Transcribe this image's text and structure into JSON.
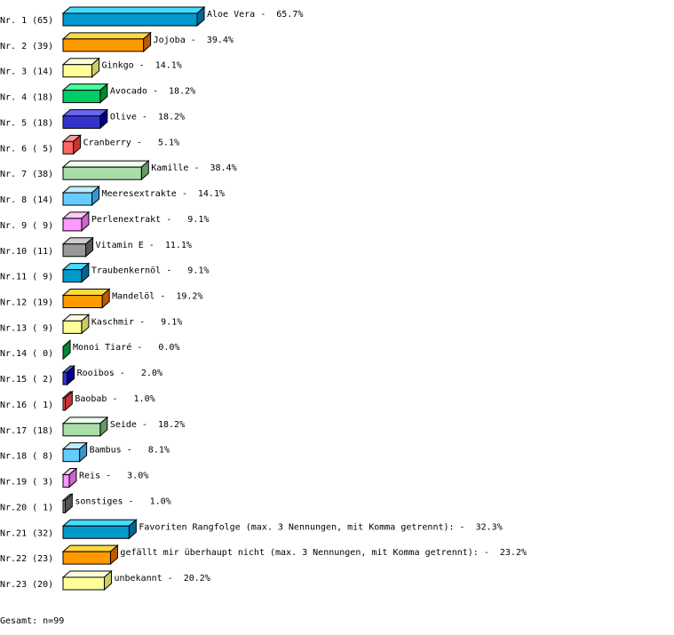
{
  "chart_data": {
    "type": "bar",
    "orientation": "horizontal",
    "style": "3d",
    "total_label": "Gesamt: n=99",
    "rows": [
      {
        "rank": "Nr. 1",
        "count": 65,
        "label": "Aloe Vera",
        "percent": "65.7%"
      },
      {
        "rank": "Nr. 2",
        "count": 39,
        "label": "Jojoba",
        "percent": "39.4%"
      },
      {
        "rank": "Nr. 3",
        "count": 14,
        "label": "Ginkgo",
        "percent": "14.1%"
      },
      {
        "rank": "Nr. 4",
        "count": 18,
        "label": "Avocado",
        "percent": "18.2%"
      },
      {
        "rank": "Nr. 5",
        "count": 18,
        "label": "Olive",
        "percent": "18.2%"
      },
      {
        "rank": "Nr. 6",
        "count": 5,
        "label": "Cranberry",
        "percent": "5.1%"
      },
      {
        "rank": "Nr. 7",
        "count": 38,
        "label": "Kamille",
        "percent": "38.4%"
      },
      {
        "rank": "Nr. 8",
        "count": 14,
        "label": "Meeresextrakte",
        "percent": "14.1%"
      },
      {
        "rank": "Nr. 9",
        "count": 9,
        "label": "Perlenextrakt",
        "percent": "9.1%"
      },
      {
        "rank": "Nr.10",
        "count": 11,
        "label": "Vitamin E",
        "percent": "11.1%"
      },
      {
        "rank": "Nr.11",
        "count": 9,
        "label": "Traubenkernöl",
        "percent": "9.1%"
      },
      {
        "rank": "Nr.12",
        "count": 19,
        "label": "Mandelöl",
        "percent": "19.2%"
      },
      {
        "rank": "Nr.13",
        "count": 9,
        "label": "Kaschmir",
        "percent": "9.1%"
      },
      {
        "rank": "Nr.14",
        "count": 0,
        "label": "Monoi Tiaré",
        "percent": "0.0%"
      },
      {
        "rank": "Nr.15",
        "count": 2,
        "label": "Rooibos",
        "percent": "2.0%"
      },
      {
        "rank": "Nr.16",
        "count": 1,
        "label": "Baobab",
        "percent": "1.0%"
      },
      {
        "rank": "Nr.17",
        "count": 18,
        "label": "Seide",
        "percent": "18.2%"
      },
      {
        "rank": "Nr.18",
        "count": 8,
        "label": "Bambus",
        "percent": "8.1%"
      },
      {
        "rank": "Nr.19",
        "count": 3,
        "label": "Reis",
        "percent": "3.0%"
      },
      {
        "rank": "Nr.20",
        "count": 1,
        "label": "sonstiges",
        "percent": "1.0%"
      },
      {
        "rank": "Nr.21",
        "count": 32,
        "label": "Favoriten Rangfolge (max. 3 Nennungen, mit Komma getrennt):",
        "percent": "32.3%"
      },
      {
        "rank": "Nr.22",
        "count": 23,
        "label": "gefällt mir überhaupt nicht (max. 3 Nennungen, mit Komma getrennt):",
        "percent": "23.2%"
      },
      {
        "rank": "Nr.23",
        "count": 20,
        "label": "unbekannt",
        "percent": "20.2%"
      }
    ],
    "palette": [
      {
        "front": "#0099cc",
        "top": "#44ddff",
        "side": "#006699"
      },
      {
        "front": "#ff9900",
        "top": "#ffd840",
        "side": "#c05a00"
      },
      {
        "front": "#ffff99",
        "top": "#ffffdd",
        "side": "#cccc66"
      },
      {
        "front": "#00cc66",
        "top": "#44ff99",
        "side": "#008833"
      },
      {
        "front": "#3333cc",
        "top": "#6666ee",
        "side": "#000088"
      },
      {
        "front": "#ff6666",
        "top": "#ff9999",
        "side": "#cc3333"
      },
      {
        "front": "#aaddaa",
        "top": "#eeffee",
        "side": "#669966"
      },
      {
        "front": "#66ccff",
        "top": "#bbeeff",
        "side": "#3399cc"
      },
      {
        "front": "#ff99ff",
        "top": "#ffccff",
        "side": "#cc66cc"
      },
      {
        "front": "#999999",
        "top": "#cccccc",
        "side": "#555555"
      }
    ]
  }
}
